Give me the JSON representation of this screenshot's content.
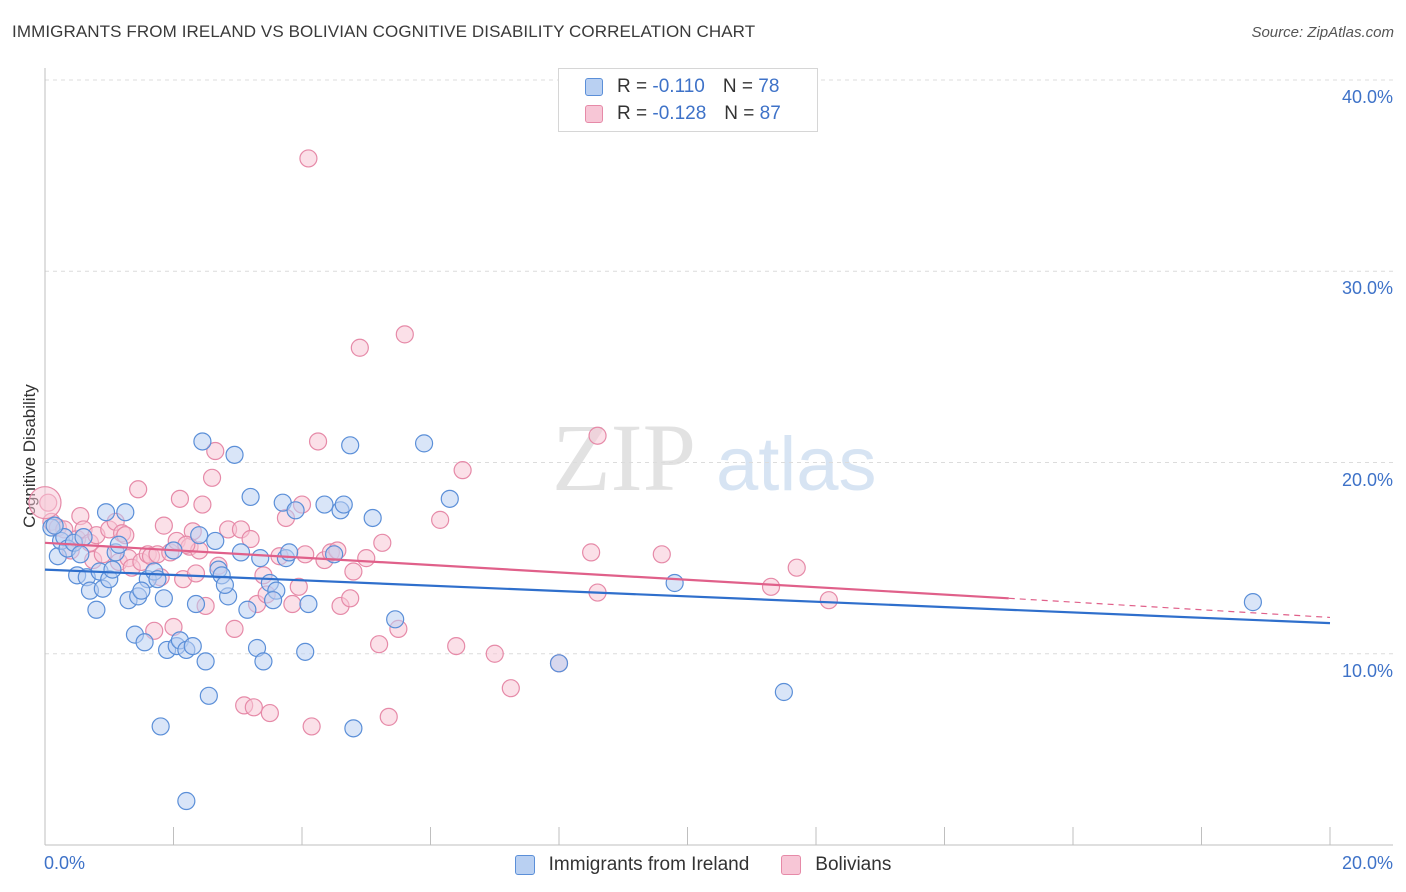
{
  "title": "IMMIGRANTS FROM IRELAND VS BOLIVIAN COGNITIVE DISABILITY CORRELATION CHART",
  "source": "Source: ZipAtlas.com",
  "watermark": {
    "zip": "ZIP",
    "atlas": "atlas"
  },
  "legend": {
    "series1": {
      "r_label": "R =",
      "r_value": "-0.110",
      "n_label": "N =",
      "n_value": "78"
    },
    "series2": {
      "r_label": "R =",
      "r_value": "-0.128",
      "n_label": "N =",
      "n_value": "87"
    }
  },
  "colors": {
    "series1_fill": "#b9d0f2",
    "series1_stroke": "#5b8fd8",
    "series1_line": "#2f6fcc",
    "series2_fill": "#f7c6d6",
    "series2_stroke": "#e68aa8",
    "series2_line": "#e0608a",
    "tick": "#3e72c8",
    "grid": "#dcdcdc"
  },
  "chart_data": {
    "type": "scatter",
    "title": "IMMIGRANTS FROM IRELAND VS BOLIVIAN COGNITIVE DISABILITY CORRELATION CHART",
    "xlabel": "",
    "ylabel": "Cognitive Disability",
    "xlim": [
      0,
      20
    ],
    "ylim": [
      0,
      40
    ],
    "x_tick_labels": [
      "0.0%",
      "20.0%"
    ],
    "y_ticks": [
      10,
      20,
      30,
      40
    ],
    "y_tick_labels": [
      "10.0%",
      "20.0%",
      "30.0%",
      "40.0%"
    ],
    "series": [
      {
        "name": "Immigrants from Ireland",
        "r": -0.11,
        "n": 78,
        "trend": {
          "x": [
            0,
            20
          ],
          "y": [
            14.4,
            11.6
          ]
        },
        "points": [
          [
            0.1,
            16.6
          ],
          [
            0.2,
            15.1
          ],
          [
            0.25,
            15.9
          ],
          [
            0.3,
            16.1
          ],
          [
            0.35,
            15.5
          ],
          [
            0.45,
            15.8
          ],
          [
            0.5,
            14.1
          ],
          [
            0.6,
            16.1
          ],
          [
            0.65,
            14.0
          ],
          [
            0.7,
            13.3
          ],
          [
            0.8,
            12.3
          ],
          [
            0.85,
            14.3
          ],
          [
            0.9,
            13.4
          ],
          [
            0.95,
            17.4
          ],
          [
            1.0,
            13.9
          ],
          [
            1.1,
            15.3
          ],
          [
            1.15,
            15.7
          ],
          [
            1.25,
            17.4
          ],
          [
            1.3,
            12.8
          ],
          [
            1.4,
            11.0
          ],
          [
            1.45,
            13.0
          ],
          [
            1.55,
            10.6
          ],
          [
            1.6,
            13.9
          ],
          [
            1.7,
            14.3
          ],
          [
            1.75,
            13.9
          ],
          [
            1.8,
            6.2
          ],
          [
            1.85,
            12.9
          ],
          [
            1.9,
            10.2
          ],
          [
            2.0,
            15.4
          ],
          [
            2.05,
            10.4
          ],
          [
            2.1,
            10.7
          ],
          [
            2.2,
            2.3
          ],
          [
            2.2,
            10.2
          ],
          [
            2.3,
            10.4
          ],
          [
            2.35,
            12.6
          ],
          [
            2.4,
            16.2
          ],
          [
            2.45,
            21.1
          ],
          [
            2.5,
            9.6
          ],
          [
            2.55,
            7.8
          ],
          [
            2.65,
            15.9
          ],
          [
            2.7,
            14.4
          ],
          [
            2.75,
            14.1
          ],
          [
            2.85,
            13.0
          ],
          [
            2.95,
            20.4
          ],
          [
            3.05,
            15.3
          ],
          [
            3.15,
            12.3
          ],
          [
            3.2,
            18.2
          ],
          [
            3.3,
            10.3
          ],
          [
            3.35,
            15.0
          ],
          [
            3.4,
            9.6
          ],
          [
            3.5,
            13.7
          ],
          [
            3.6,
            13.3
          ],
          [
            3.7,
            17.9
          ],
          [
            3.75,
            15.0
          ],
          [
            3.8,
            15.3
          ],
          [
            3.9,
            17.5
          ],
          [
            4.05,
            10.1
          ],
          [
            4.1,
            12.6
          ],
          [
            4.35,
            17.8
          ],
          [
            4.5,
            15.2
          ],
          [
            4.6,
            17.5
          ],
          [
            4.65,
            17.8
          ],
          [
            4.75,
            20.9
          ],
          [
            4.8,
            6.1
          ],
          [
            5.1,
            17.1
          ],
          [
            5.45,
            11.8
          ],
          [
            5.9,
            21.0
          ],
          [
            6.3,
            18.1
          ],
          [
            8.0,
            9.5
          ],
          [
            9.8,
            13.7
          ],
          [
            11.5,
            8.0
          ],
          [
            18.8,
            12.7
          ],
          [
            0.15,
            16.7
          ],
          [
            0.55,
            15.2
          ],
          [
            1.05,
            14.4
          ],
          [
            1.5,
            13.3
          ],
          [
            2.8,
            13.6
          ],
          [
            3.55,
            12.8
          ]
        ]
      },
      {
        "name": "Bolivians",
        "r": -0.128,
        "n": 87,
        "trend": {
          "x": [
            0,
            15
          ],
          "y": [
            15.8,
            12.9
          ]
        },
        "trend_dashed": {
          "x": [
            15,
            20
          ],
          "y": [
            12.9,
            11.9
          ]
        },
        "points": [
          [
            0.05,
            17.9
          ],
          [
            0.1,
            16.9
          ],
          [
            0.2,
            16.6
          ],
          [
            0.3,
            16.5
          ],
          [
            0.4,
            15.4
          ],
          [
            0.5,
            16.0
          ],
          [
            0.55,
            17.2
          ],
          [
            0.6,
            16.5
          ],
          [
            0.7,
            15.8
          ],
          [
            0.75,
            14.9
          ],
          [
            0.8,
            16.2
          ],
          [
            0.9,
            15.2
          ],
          [
            1.0,
            16.5
          ],
          [
            1.1,
            16.9
          ],
          [
            1.15,
            14.8
          ],
          [
            1.2,
            16.3
          ],
          [
            1.3,
            15.0
          ],
          [
            1.35,
            14.5
          ],
          [
            1.45,
            18.6
          ],
          [
            1.5,
            14.8
          ],
          [
            1.6,
            15.2
          ],
          [
            1.65,
            15.1
          ],
          [
            1.7,
            11.2
          ],
          [
            1.75,
            15.2
          ],
          [
            1.8,
            14.0
          ],
          [
            1.85,
            16.7
          ],
          [
            1.95,
            15.3
          ],
          [
            2.0,
            11.4
          ],
          [
            2.05,
            15.9
          ],
          [
            2.1,
            18.1
          ],
          [
            2.15,
            13.9
          ],
          [
            2.25,
            15.6
          ],
          [
            2.3,
            16.4
          ],
          [
            2.35,
            14.2
          ],
          [
            2.4,
            15.4
          ],
          [
            2.45,
            17.8
          ],
          [
            2.5,
            12.5
          ],
          [
            2.6,
            19.2
          ],
          [
            2.65,
            20.6
          ],
          [
            2.7,
            14.6
          ],
          [
            2.85,
            16.5
          ],
          [
            2.95,
            11.3
          ],
          [
            3.05,
            16.5
          ],
          [
            3.1,
            7.3
          ],
          [
            3.2,
            16.0
          ],
          [
            3.25,
            7.2
          ],
          [
            3.3,
            12.6
          ],
          [
            3.4,
            14.1
          ],
          [
            3.45,
            13.1
          ],
          [
            3.5,
            6.9
          ],
          [
            3.65,
            15.1
          ],
          [
            3.75,
            17.1
          ],
          [
            3.85,
            12.6
          ],
          [
            3.95,
            13.5
          ],
          [
            4.0,
            17.8
          ],
          [
            4.05,
            15.2
          ],
          [
            4.15,
            6.2
          ],
          [
            4.25,
            21.1
          ],
          [
            4.35,
            14.9
          ],
          [
            4.45,
            15.3
          ],
          [
            4.55,
            15.4
          ],
          [
            4.6,
            12.5
          ],
          [
            4.75,
            12.9
          ],
          [
            4.8,
            14.3
          ],
          [
            4.9,
            26.0
          ],
          [
            5.0,
            15.0
          ],
          [
            5.2,
            10.5
          ],
          [
            5.25,
            15.8
          ],
          [
            5.35,
            6.7
          ],
          [
            5.5,
            11.3
          ],
          [
            5.6,
            26.7
          ],
          [
            6.15,
            17.0
          ],
          [
            6.4,
            10.4
          ],
          [
            6.5,
            19.6
          ],
          [
            7.0,
            10.0
          ],
          [
            7.25,
            8.2
          ],
          [
            8.0,
            9.5
          ],
          [
            8.5,
            15.3
          ],
          [
            8.6,
            13.2
          ],
          [
            8.6,
            21.4
          ],
          [
            9.6,
            15.2
          ],
          [
            11.3,
            13.5
          ],
          [
            11.7,
            14.5
          ],
          [
            12.2,
            12.8
          ],
          [
            4.1,
            35.9
          ],
          [
            1.25,
            16.2
          ],
          [
            2.2,
            15.7
          ]
        ]
      }
    ],
    "legend_position": "top-center"
  }
}
